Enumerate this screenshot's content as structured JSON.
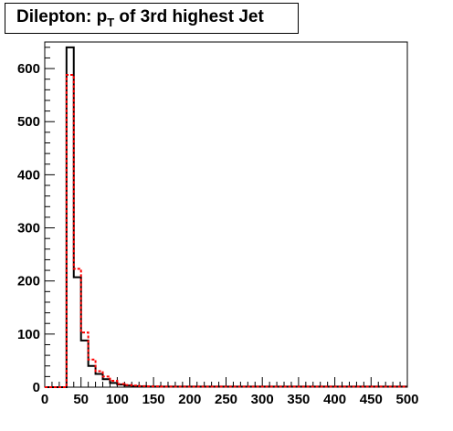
{
  "chart_data": {
    "type": "histogram",
    "title_main": "Dilepton: p",
    "title_sub": "T",
    "title_rest": " of 3rd highest Jet",
    "xlabel": "",
    "ylabel": "",
    "xlim": [
      0,
      500
    ],
    "ylim": [
      0,
      650
    ],
    "bin_width": 10,
    "x_ticks": [
      "0",
      "50",
      "100",
      "150",
      "200",
      "250",
      "300",
      "350",
      "400",
      "450",
      "500"
    ],
    "y_ticks": [
      "0",
      "100",
      "200",
      "300",
      "400",
      "500",
      "600"
    ],
    "series": [
      {
        "style": "solid",
        "color": "#000000",
        "bin_edges_start": 0,
        "values": [
          0,
          0,
          0,
          640,
          207,
          88,
          40,
          25,
          15,
          8,
          5,
          3,
          2,
          1.5,
          1,
          1,
          1,
          1,
          1,
          1,
          1,
          1,
          1,
          1,
          1,
          1,
          1,
          1,
          1,
          1,
          1,
          1,
          1,
          1,
          1,
          1,
          1,
          1,
          1,
          1,
          1,
          1,
          1,
          1,
          1,
          1,
          1,
          1,
          1,
          1
        ]
      },
      {
        "style": "dashed",
        "color": "#ff0000",
        "bin_edges_start": 0,
        "values": [
          0,
          0,
          0,
          588,
          223,
          103,
          52,
          30,
          20,
          12,
          6,
          4,
          3,
          2,
          1.5,
          1.5,
          1,
          1,
          1,
          1,
          1,
          1,
          1,
          1,
          1,
          1,
          1,
          1,
          1,
          1,
          1,
          1,
          1,
          1,
          1,
          1,
          1,
          1,
          1,
          1,
          1,
          1,
          1,
          1,
          1,
          1,
          1,
          1,
          1,
          1
        ]
      }
    ]
  }
}
